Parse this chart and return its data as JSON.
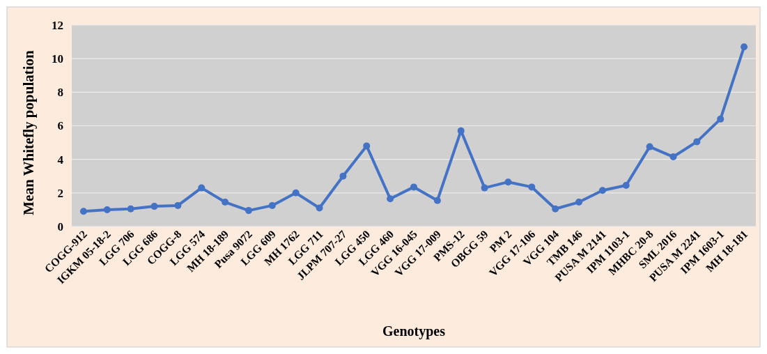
{
  "chart_data": {
    "type": "line",
    "xlabel": "Genotypes",
    "ylabel": "Mean Whitefly population",
    "categories": [
      "COGG-912",
      "IGKM 05-18-2",
      "LGG 706",
      "LGG 686",
      "COGG-8",
      "LGG 574",
      "MH 18-189",
      "Pusa 9072",
      "LGG 609",
      "MH 1762",
      "LGG 711",
      "JLPM 707-27",
      "LGG 450",
      "LGG 460",
      "VGG 16-045",
      "VGG 17-009",
      "PMS-12",
      "OBGG 59",
      "PM 2",
      "VGG 17-106",
      "VGG 104",
      "TMB 146",
      "PUSA M 2141",
      "IPM 1103-1",
      "MHBC 20-8",
      "SML 2016",
      "PUSA M 2241",
      "IPM 1603-1",
      "MH 18-181"
    ],
    "series": [
      {
        "color": "#4472c4",
        "values": [
          0.9,
          1.0,
          1.05,
          1.2,
          1.25,
          2.3,
          1.45,
          0.95,
          1.25,
          2.0,
          1.1,
          3.0,
          4.8,
          1.65,
          2.35,
          1.55,
          5.7,
          2.3,
          2.65,
          2.35,
          1.05,
          1.45,
          2.15,
          2.45,
          4.75,
          4.15,
          5.05,
          6.4,
          10.7
        ]
      }
    ],
    "ylim": [
      0,
      12
    ],
    "yticks": [
      0,
      2,
      4,
      6,
      8,
      10,
      12
    ],
    "grid": "y",
    "marker": "circle",
    "line_style": "solid"
  }
}
